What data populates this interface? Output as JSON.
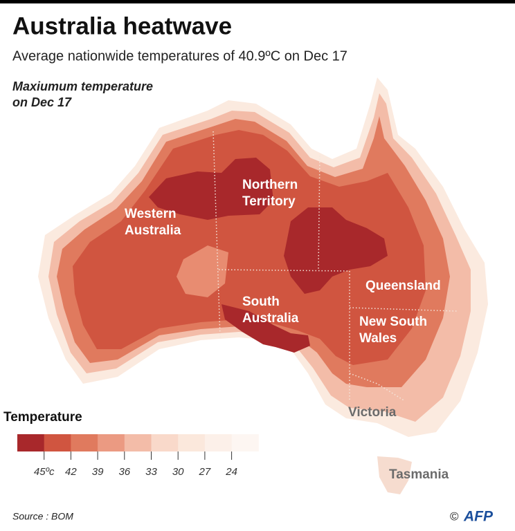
{
  "header": {
    "title": "Australia heatwave",
    "subtitle": "Average nationwide temperatures of 40.9ºC on Dec 17",
    "map_label": [
      "Maxiumum temperature",
      "on Dec 17"
    ]
  },
  "regions": [
    {
      "lines": [
        "Western",
        "Australia"
      ]
    },
    {
      "lines": [
        "Northern",
        "Territory"
      ]
    },
    {
      "lines": [
        "South",
        "Australia"
      ]
    },
    {
      "lines": [
        "Queensland"
      ]
    },
    {
      "lines": [
        "New South",
        "Wales"
      ]
    },
    {
      "lines": [
        "Victoria"
      ]
    },
    {
      "lines": [
        "Tasmania"
      ]
    }
  ],
  "legend": {
    "title": "Temperature",
    "colors": [
      "#a8282b",
      "#d05540",
      "#e07a5e",
      "#eb9a82",
      "#f3bca8",
      "#f9d9ca",
      "#fbe8dc",
      "#fcf0e9",
      "#fdf6f2"
    ],
    "ticks": [
      {
        "value": 45,
        "label": "45ºc"
      },
      42,
      39,
      36,
      33,
      30,
      27,
      24
    ]
  },
  "footer": {
    "source": "Source : BOM",
    "copyright": "©",
    "logo": "AFP"
  }
}
